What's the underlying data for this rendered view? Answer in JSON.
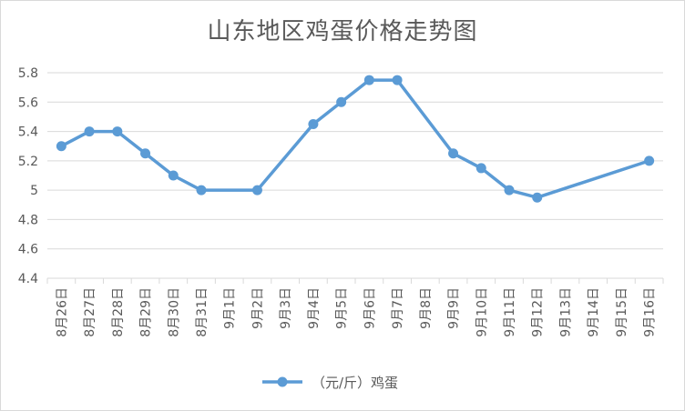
{
  "chart_data": {
    "type": "line",
    "title": "山东地区鸡蛋价格走势图",
    "xlabel": "",
    "ylabel": "",
    "ylim": [
      4.4,
      5.8
    ],
    "yticks": [
      "4.4",
      "4.6",
      "4.8",
      "5",
      "5.2",
      "5.4",
      "5.6",
      "5.8"
    ],
    "grid": true,
    "legend_position": "bottom",
    "categories": [
      "8月26日",
      "8月27日",
      "8月28日",
      "8月29日",
      "8月30日",
      "8月31日",
      "9月1日",
      "9月2日",
      "9月3日",
      "9月4日",
      "9月5日",
      "9月6日",
      "9月7日",
      "9月8日",
      "9月9日",
      "9月10日",
      "9月11日",
      "9月12日",
      "9月13日",
      "9月14日",
      "9月15日",
      "9月16日"
    ],
    "series": [
      {
        "name": "（元/斤）鸡蛋",
        "color": "#5b9bd5",
        "values": [
          5.3,
          5.4,
          5.4,
          5.25,
          5.1,
          5.0,
          null,
          5.0,
          null,
          5.45,
          5.6,
          5.75,
          5.75,
          null,
          5.25,
          5.15,
          5.0,
          4.95,
          null,
          null,
          null,
          5.2
        ]
      }
    ]
  }
}
